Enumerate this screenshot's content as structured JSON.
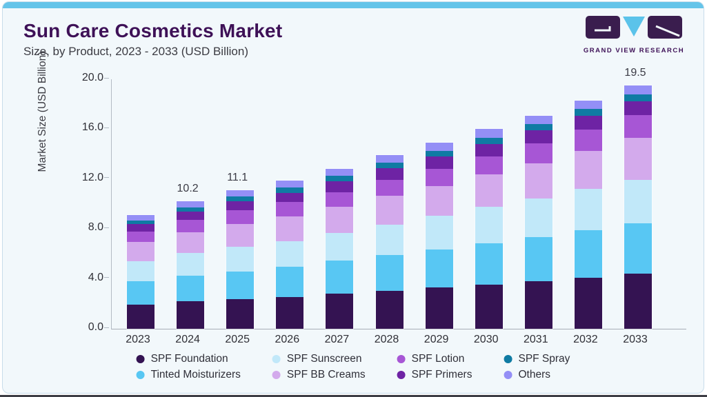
{
  "page": {
    "title": "Sun Care Cosmetics Market",
    "subtitle": "Size, by Product, 2023 - 2033 (USD Billion)",
    "accent_color": "#65c4e9",
    "background_color": "#f2f8fb"
  },
  "logo": {
    "text": "GRAND VIEW RESEARCH",
    "dark_color": "#3a1d4e",
    "blue_color": "#5bc3ea"
  },
  "chart_data": {
    "type": "bar",
    "stacked": true,
    "title": "Sun Care Cosmetics Market Size, by Product, 2023 - 2033 (USD Billion)",
    "xlabel": "",
    "ylabel": "Market Size (USD Billion)",
    "ylim": [
      0,
      20
    ],
    "grid": false,
    "legend_position": "bottom",
    "yticks": [
      {
        "value": 0,
        "label": "0.0"
      },
      {
        "value": 4,
        "label": "4.0"
      },
      {
        "value": 8,
        "label": "8.0"
      },
      {
        "value": 12,
        "label": "12.0"
      },
      {
        "value": 16,
        "label": "16.0"
      },
      {
        "value": 20,
        "label": "20.0"
      }
    ],
    "categories": [
      "2023",
      "2024",
      "2025",
      "2026",
      "2027",
      "2028",
      "2029",
      "2030",
      "2031",
      "2032",
      "2033"
    ],
    "series": [
      {
        "name": "SPF Foundation",
        "color": "#341352",
        "values": [
          1.95,
          2.2,
          2.35,
          2.55,
          2.8,
          3.05,
          3.3,
          3.55,
          3.8,
          4.1,
          4.4
        ]
      },
      {
        "name": "Tinted Moisturizers",
        "color": "#58c7f3",
        "values": [
          1.85,
          2.05,
          2.25,
          2.4,
          2.65,
          2.85,
          3.05,
          3.3,
          3.55,
          3.8,
          4.05
        ]
      },
      {
        "name": "SPF Sunscreen",
        "color": "#c1e8f9",
        "values": [
          1.6,
          1.8,
          1.95,
          2.05,
          2.25,
          2.45,
          2.7,
          2.9,
          3.1,
          3.3,
          3.5
        ]
      },
      {
        "name": "SPF BB Creams",
        "color": "#d3aaec",
        "values": [
          1.55,
          1.7,
          1.85,
          2.0,
          2.1,
          2.3,
          2.4,
          2.6,
          2.8,
          3.05,
          3.35
        ]
      },
      {
        "name": "SPF Lotion",
        "color": "#a756d5",
        "values": [
          0.85,
          1.0,
          1.1,
          1.15,
          1.15,
          1.3,
          1.35,
          1.45,
          1.6,
          1.7,
          1.8
        ]
      },
      {
        "name": "SPF Primers",
        "color": "#6e23a4",
        "values": [
          0.6,
          0.65,
          0.7,
          0.75,
          0.85,
          0.9,
          1.0,
          1.0,
          1.05,
          1.1,
          1.15
        ]
      },
      {
        "name": "SPF Spray",
        "color": "#0f7ba3",
        "values": [
          0.3,
          0.35,
          0.4,
          0.45,
          0.45,
          0.45,
          0.45,
          0.5,
          0.5,
          0.55,
          0.55
        ]
      },
      {
        "name": "Others",
        "color": "#948ff6",
        "values": [
          0.4,
          0.45,
          0.5,
          0.55,
          0.55,
          0.6,
          0.65,
          0.7,
          0.7,
          0.7,
          0.7
        ]
      }
    ],
    "total_labels": {
      "2024": "10.2",
      "2025": "11.1",
      "2033": "19.5"
    },
    "legend_order": [
      "SPF Foundation",
      "SPF Sunscreen",
      "SPF Lotion",
      "SPF Spray",
      "Tinted Moisturizers",
      "SPF BB Creams",
      "SPF Primers",
      "Others"
    ]
  }
}
